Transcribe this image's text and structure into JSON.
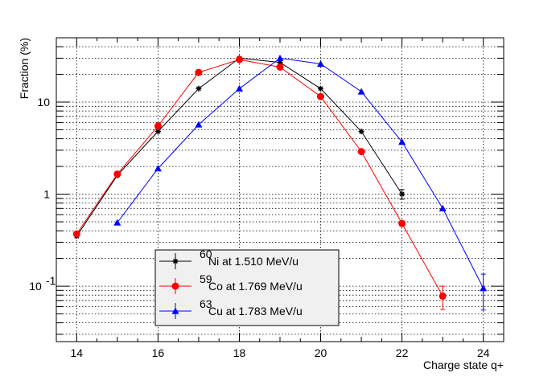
{
  "chart_data": {
    "type": "scatter",
    "title": "",
    "xlabel": "Charge state q+",
    "ylabel": "Fraction (%)",
    "xlim": [
      13.5,
      24.5
    ],
    "ylim": [
      0.025,
      50
    ],
    "x_scale": "linear",
    "y_scale": "log",
    "grid": true,
    "legend_position": "bottom-center",
    "x_ticks": [
      14,
      16,
      18,
      20,
      22,
      24
    ],
    "x_tick_labels": [
      "14",
      "16",
      "18",
      "20",
      "22",
      "24"
    ],
    "y_ticks": [
      0.1,
      1,
      10
    ],
    "y_tick_labels": [
      {
        "base": "10",
        "exp": "-1"
      },
      {
        "base": "1",
        "exp": ""
      },
      {
        "base": "10",
        "exp": ""
      }
    ],
    "series": [
      {
        "name_sup": "60",
        "name_text": "Ni at 1.510 MeV/u",
        "color": "#000000",
        "marker": "star",
        "x": [
          14,
          15,
          16,
          17,
          18,
          19,
          20,
          21,
          22
        ],
        "y": [
          0.35,
          1.6,
          4.8,
          14.0,
          30.0,
          27.0,
          14.0,
          4.8,
          1.0
        ],
        "err": [
          0.02,
          0.05,
          0.15,
          0.4,
          0.8,
          0.8,
          0.4,
          0.15,
          0.12
        ]
      },
      {
        "name_sup": "59",
        "name_text": "Co at 1.769 MeV/u",
        "color": "#ff0000",
        "marker": "circle",
        "x": [
          14,
          15,
          16,
          17,
          18,
          19,
          20,
          21,
          22,
          23
        ],
        "y": [
          0.37,
          1.65,
          5.5,
          21.0,
          29.0,
          24.0,
          11.5,
          2.9,
          0.48,
          0.078
        ],
        "err": [
          0.02,
          0.05,
          0.15,
          0.6,
          0.8,
          0.7,
          0.35,
          0.1,
          0.03,
          0.022
        ]
      },
      {
        "name_sup": "63",
        "name_text": "Cu at 1.783 MeV/u",
        "color": "#0000ff",
        "marker": "triangle",
        "x": [
          15,
          16,
          17,
          18,
          19,
          20,
          21,
          22,
          23,
          24
        ],
        "y": [
          0.49,
          1.9,
          5.7,
          14.0,
          30.0,
          26.0,
          13.0,
          3.7,
          0.7,
          0.095
        ],
        "err": [
          0.02,
          0.06,
          0.17,
          0.4,
          0.8,
          0.7,
          0.4,
          0.12,
          0.03,
          0.04
        ]
      }
    ]
  }
}
